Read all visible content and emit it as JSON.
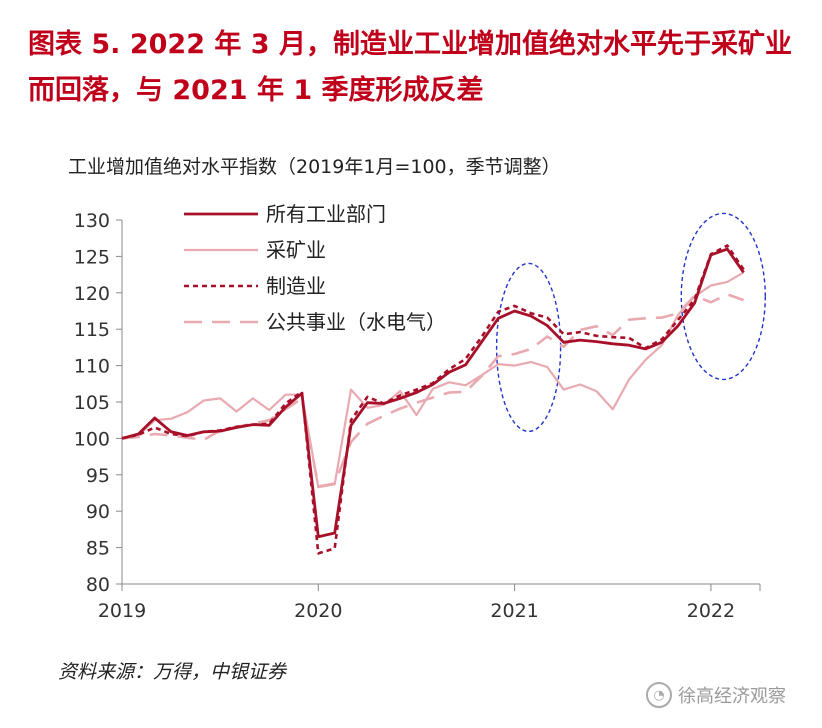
{
  "figure_title": "图表 5.  2022 年 3 月，制造业工业增加值绝对水平先于采矿业而回落，与 2021 年 1 季度形成反差",
  "source_note": "资料来源：万得，中银证券",
  "watermark": "徐高经济观察",
  "chart_data": {
    "type": "line",
    "subtitle": "工业增加值绝对水平指数（2019年1月=100，季节调整）",
    "xlabel": "",
    "ylabel": "",
    "ylim": [
      80,
      130
    ],
    "yticks": [
      80,
      85,
      90,
      95,
      100,
      105,
      110,
      115,
      120,
      125,
      130
    ],
    "xlim": [
      "2019-01",
      "2022-04"
    ],
    "xticks": [
      "2019",
      "2020",
      "2021",
      "2022"
    ],
    "grid": false,
    "legend_position": "top-left",
    "x": [
      "2019-01",
      "2019-02",
      "2019-03",
      "2019-04",
      "2019-05",
      "2019-06",
      "2019-07",
      "2019-08",
      "2019-09",
      "2019-10",
      "2019-11",
      "2019-12",
      "2020-01",
      "2020-02",
      "2020-03",
      "2020-04",
      "2020-05",
      "2020-06",
      "2020-07",
      "2020-08",
      "2020-09",
      "2020-10",
      "2020-11",
      "2020-12",
      "2021-01",
      "2021-02",
      "2021-03",
      "2021-04",
      "2021-05",
      "2021-06",
      "2021-07",
      "2021-08",
      "2021-09",
      "2021-10",
      "2021-11",
      "2021-12",
      "2022-01",
      "2022-02",
      "2022-03"
    ],
    "series": [
      {
        "name": "所有工业部门",
        "color": "#a8102a",
        "style": "solid",
        "width": 2.8,
        "values": [
          100,
          100.6,
          102.8,
          100.9,
          100.4,
          100.9,
          101,
          101.5,
          101.9,
          101.8,
          104.3,
          106.2,
          86.5,
          87,
          101.8,
          104.9,
          104.8,
          105.5,
          106.3,
          107.4,
          109.1,
          110.1,
          113.3,
          116.5,
          117.5,
          116.8,
          115.5,
          113.2,
          113.5,
          113.3,
          113,
          112.8,
          112.3,
          113.2,
          115.5,
          118.6,
          125.2,
          126,
          122.8
        ]
      },
      {
        "name": "采矿业",
        "color": "#e8aab0",
        "style": "solid",
        "width": 2.2,
        "values": [
          100,
          100.4,
          102.5,
          102.7,
          103.6,
          105.2,
          105.5,
          103.7,
          105.5,
          103.9,
          106,
          106,
          93.3,
          93.7,
          106.7,
          104.2,
          104.6,
          106.5,
          103.2,
          106.8,
          107.7,
          107.3,
          108.7,
          110.2,
          110,
          110.5,
          109.8,
          106.7,
          107.4,
          106.5,
          104,
          108.1,
          110.8,
          112.8,
          117,
          119.5,
          121,
          121.5,
          122.8
        ]
      },
      {
        "name": "制造业",
        "color": "#a8102a",
        "style": "dash",
        "width": 2.6,
        "values": [
          100,
          100.5,
          101.5,
          100.6,
          100.3,
          100.9,
          101.1,
          101.6,
          101.9,
          102,
          104.8,
          106.4,
          84.2,
          84.9,
          102.5,
          105.7,
          104.8,
          105.9,
          106.7,
          107.6,
          109.5,
          110.9,
          114,
          117.4,
          118.2,
          117.2,
          116.6,
          114.3,
          114.6,
          114.1,
          113.9,
          113.8,
          112.4,
          113.6,
          116.3,
          119.1,
          125.3,
          126.5,
          123.2
        ]
      },
      {
        "name": "公共事业（水电气）",
        "color": "#e8aab0",
        "style": "longdash",
        "width": 2.6,
        "values": [
          100,
          100.2,
          100.6,
          100.4,
          100.1,
          99.8,
          101.1,
          101.6,
          102,
          102.5,
          104,
          105.5,
          93.4,
          93.8,
          99.5,
          102,
          103.1,
          104.1,
          104.9,
          105.6,
          106.3,
          106.4,
          108.6,
          111.3,
          111.6,
          112.3,
          114,
          112.6,
          114.9,
          115.4,
          114.2,
          116.3,
          116.5,
          116.6,
          117.2,
          119.6,
          118.7,
          119.8,
          119
        ]
      }
    ],
    "annotations": [
      {
        "type": "ellipse",
        "color": "#2233cc",
        "label": "",
        "x_center": "2021-01",
        "y_center": 112.5
      },
      {
        "type": "ellipse",
        "color": "#2233cc",
        "label": "",
        "x_center": "2022-02",
        "y_center": 119.5
      }
    ]
  }
}
